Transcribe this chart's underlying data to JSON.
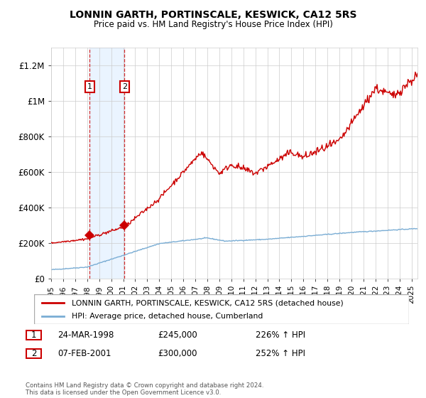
{
  "title": "LONNIN GARTH, PORTINSCALE, KESWICK, CA12 5RS",
  "subtitle": "Price paid vs. HM Land Registry's House Price Index (HPI)",
  "ylim": [
    0,
    1300000
  ],
  "yticks": [
    0,
    200000,
    400000,
    600000,
    800000,
    1000000,
    1200000
  ],
  "ytick_labels": [
    "£0",
    "£200K",
    "£400K",
    "£600K",
    "£800K",
    "£1M",
    "£1.2M"
  ],
  "hpi_color": "#7aadd4",
  "price_color": "#cc0000",
  "sale1_date": "24-MAR-1998",
  "sale1_price": 245000,
  "sale1_year": 1998.22,
  "sale1_hpi": "226% ↑ HPI",
  "sale2_date": "07-FEB-2001",
  "sale2_price": 300000,
  "sale2_year": 2001.1,
  "sale2_hpi": "252% ↑ HPI",
  "legend_label1": "LONNIN GARTH, PORTINSCALE, KESWICK, CA12 5RS (detached house)",
  "legend_label2": "HPI: Average price, detached house, Cumberland",
  "footer": "Contains HM Land Registry data © Crown copyright and database right 2024.\nThis data is licensed under the Open Government Licence v3.0.",
  "bg_color": "#ffffff",
  "grid_color": "#cccccc",
  "shade_color": "#ddeeff",
  "xmin": 1995,
  "xmax": 2025.5
}
